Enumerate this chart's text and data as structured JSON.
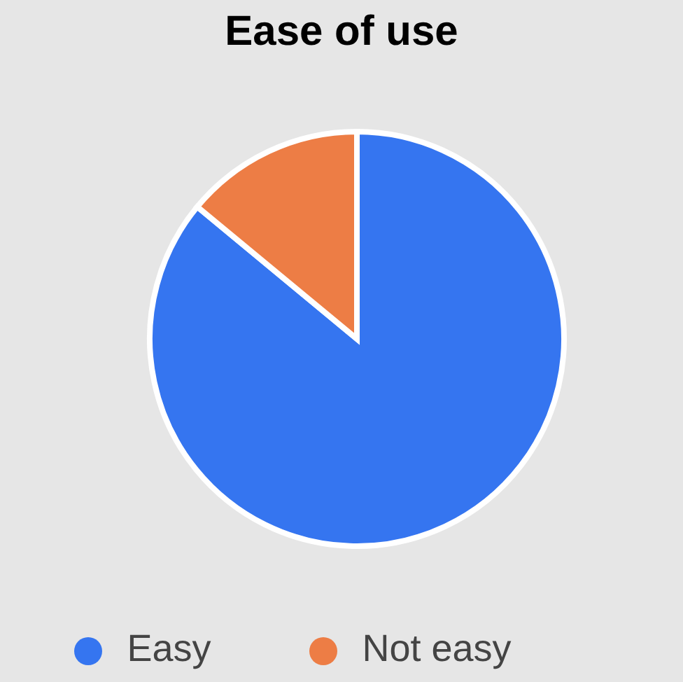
{
  "chart_data": {
    "type": "pie",
    "title": "Ease of use",
    "categories": [
      "Easy",
      "Not easy"
    ],
    "values": [
      86,
      14
    ],
    "colors": [
      "#3575f0",
      "#ed7d45"
    ],
    "legend": "bottom"
  }
}
